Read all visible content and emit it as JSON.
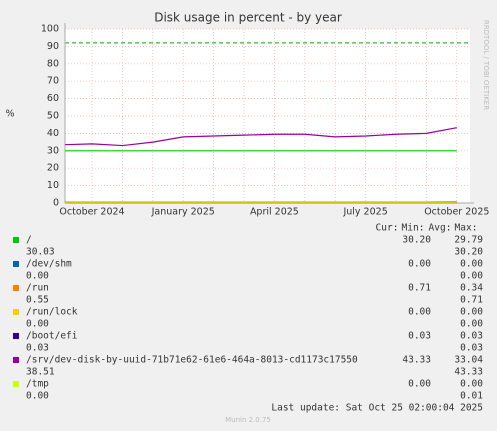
{
  "chart_data": {
    "type": "line",
    "title": "Disk usage in percent - by year",
    "y_label": "%",
    "side_note": "RRDTOOL / TOBI OETIKER",
    "categories": [
      null,
      "October 2024",
      null,
      null,
      "January 2025",
      null,
      null,
      "April 2025",
      null,
      null,
      "July 2025",
      null,
      null,
      "October 2025"
    ],
    "ylim": [
      0,
      100
    ],
    "yticks": [
      0,
      10,
      20,
      30,
      40,
      50,
      60,
      70,
      80,
      90,
      100
    ],
    "grid": true,
    "warning": 92,
    "warning_color": "#00aa00",
    "series": [
      {
        "name": "/",
        "color": "#00cc00",
        "values": [
          30,
          30,
          30,
          30,
          30,
          30,
          30,
          30,
          30,
          30,
          30,
          30,
          30,
          30
        ]
      },
      {
        "name": "/dev/shm",
        "color": "#0066b3",
        "values": [
          0,
          0,
          0,
          0,
          0,
          0,
          0,
          0,
          0,
          0,
          0,
          0,
          0,
          0
        ]
      },
      {
        "name": "/run",
        "color": "#ff8000",
        "values": [
          0.5,
          0.5,
          0.5,
          0.5,
          0.5,
          0.5,
          0.5,
          0.5,
          0.5,
          0.5,
          0.5,
          0.5,
          0.5,
          0.7
        ]
      },
      {
        "name": "/run/lock",
        "color": "#ffcc00",
        "values": [
          0,
          0,
          0,
          0,
          0,
          0,
          0,
          0,
          0,
          0,
          0,
          0,
          0,
          0
        ]
      },
      {
        "name": "/boot/efi",
        "color": "#330099",
        "values": [
          0,
          0,
          0,
          0,
          0,
          0,
          0,
          0,
          0,
          0,
          0,
          0,
          0,
          0
        ]
      },
      {
        "name": "/srv/dev-disk-by-uuid-71b71e62-61e6-464a-8013-cd1173c17550",
        "color": "#990099",
        "values": [
          33.5,
          34,
          33,
          35,
          38,
          38.5,
          39,
          39.5,
          39.5,
          38,
          38.5,
          39.5,
          40,
          43.3
        ]
      },
      {
        "name": "/tmp",
        "color": "#ccff00",
        "values": [
          0,
          0,
          0,
          0,
          0,
          0,
          0,
          0,
          0,
          0,
          0,
          0,
          0,
          0
        ]
      }
    ]
  },
  "legend_header": [
    "Cur:",
    "Min:",
    "Avg:",
    "Max:"
  ],
  "legend_stats": [
    [
      "30.20",
      "29.79",
      "30.03",
      "30.20"
    ],
    [
      "0.00",
      "0.00",
      "0.00",
      "0.00"
    ],
    [
      "0.71",
      "0.34",
      "0.55",
      "0.71"
    ],
    [
      "0.00",
      "0.00",
      "0.00",
      "0.00"
    ],
    [
      "0.03",
      "0.03",
      "0.03",
      "0.03"
    ],
    [
      "43.33",
      "33.04",
      "38.51",
      "43.33"
    ],
    [
      "0.00",
      "0.00",
      "0.00",
      "0.01"
    ]
  ],
  "footer": "Last update: Sat Oct 25 02:00:04 2025",
  "version": "Munin 2.0.75"
}
